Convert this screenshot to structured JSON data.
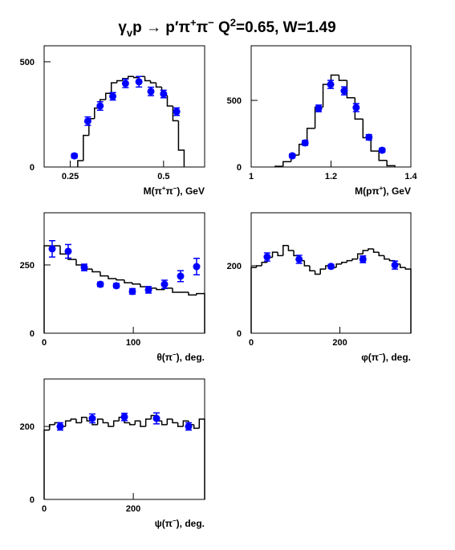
{
  "title": [
    "γ",
    {
      "sub": "v"
    },
    "p → p′π",
    {
      "sup": "+"
    },
    "π",
    {
      "sup": "−"
    },
    "   Q",
    {
      "sup": "2"
    },
    "=0.65, W=1.49"
  ],
  "chart_data": [
    {
      "type": "histogram",
      "xlabel": [
        "M(π",
        {
          "sup": "+"
        },
        "π",
        {
          "sup": "−"
        },
        "), GeV"
      ],
      "xlim": [
        0.18,
        0.61
      ],
      "xticks": [
        0.25,
        0.5
      ],
      "ylim": [
        0,
        576
      ],
      "yticks": [
        0,
        500
      ],
      "bins": [
        0.27,
        0.285,
        0.3,
        0.315,
        0.33,
        0.345,
        0.36,
        0.375,
        0.39,
        0.405,
        0.42,
        0.435,
        0.45,
        0.465,
        0.48,
        0.495,
        0.51,
        0.525,
        0.54,
        0.555
      ],
      "counts": [
        30,
        150,
        230,
        280,
        320,
        350,
        400,
        410,
        420,
        430,
        425,
        430,
        410,
        400,
        380,
        340,
        290,
        220,
        80
      ],
      "points": {
        "color": "#0000ff",
        "x": [
          0.261,
          0.297,
          0.33,
          0.364,
          0.398,
          0.434,
          0.466,
          0.5,
          0.535
        ],
        "values": [
          53,
          218,
          290,
          336,
          397,
          405,
          359,
          347,
          263
        ],
        "errors": [
          10,
          20,
          20,
          18,
          20,
          25,
          20,
          18,
          18
        ]
      }
    },
    {
      "type": "histogram",
      "xlabel": [
        "M(pπ",
        {
          "sup": "+"
        },
        "), GeV"
      ],
      "xlim": [
        1,
        1.4
      ],
      "xticks": [
        1,
        1.2,
        1.4
      ],
      "ylim": [
        0,
        910
      ],
      "yticks": [
        0,
        500
      ],
      "bins": [
        1.06,
        1.08,
        1.1,
        1.12,
        1.14,
        1.16,
        1.18,
        1.2,
        1.22,
        1.24,
        1.26,
        1.28,
        1.3,
        1.32,
        1.34,
        1.36
      ],
      "counts": [
        5,
        40,
        90,
        170,
        290,
        450,
        620,
        690,
        650,
        520,
        360,
        220,
        120,
        50,
        10
      ],
      "points": {
        "color": "#0000ff",
        "x": [
          1.103,
          1.135,
          1.169,
          1.199,
          1.233,
          1.263,
          1.295,
          1.328
        ],
        "values": [
          84,
          181,
          440,
          620,
          572,
          446,
          223,
          126
        ],
        "errors": [
          15,
          18,
          25,
          30,
          30,
          30,
          20,
          15
        ]
      }
    },
    {
      "type": "histogram",
      "xlabel": [
        "θ(π",
        {
          "sup": "−"
        },
        "), deg."
      ],
      "xlim": [
        0,
        180
      ],
      "xticks": [
        0,
        100
      ],
      "ylim": [
        0,
        441
      ],
      "yticks": [
        0,
        250
      ],
      "bins": [
        0,
        9,
        18,
        27,
        36,
        45,
        54,
        63,
        72,
        81,
        90,
        99,
        108,
        117,
        126,
        135,
        144,
        153,
        162,
        171,
        180
      ],
      "counts": [
        320,
        320,
        290,
        270,
        250,
        235,
        225,
        210,
        200,
        195,
        185,
        180,
        170,
        165,
        160,
        165,
        150,
        150,
        140,
        145
      ],
      "points": {
        "color": "#0000ff",
        "x": [
          9,
          27,
          45,
          63,
          81,
          99,
          117,
          135,
          153,
          171
        ],
        "values": [
          309,
          300,
          241,
          179,
          174,
          153,
          159,
          179,
          209,
          244
        ],
        "errors": [
          30,
          25,
          12,
          8,
          8,
          10,
          12,
          15,
          20,
          30
        ]
      }
    },
    {
      "type": "histogram",
      "xlabel": [
        "φ(π",
        {
          "sup": "−"
        },
        "), deg."
      ],
      "xlim": [
        0,
        360
      ],
      "xticks": [
        0,
        200
      ],
      "ylim": [
        0,
        357
      ],
      "yticks": [
        0,
        200
      ],
      "bins": [
        0,
        12,
        24,
        36,
        48,
        60,
        72,
        84,
        96,
        108,
        120,
        132,
        144,
        156,
        168,
        180,
        192,
        204,
        216,
        228,
        240,
        252,
        264,
        276,
        288,
        300,
        312,
        324,
        336,
        348,
        360
      ],
      "counts": [
        195,
        200,
        210,
        225,
        240,
        230,
        260,
        245,
        230,
        215,
        200,
        185,
        175,
        190,
        200,
        195,
        205,
        210,
        215,
        220,
        235,
        245,
        250,
        240,
        230,
        220,
        215,
        205,
        195,
        190
      ],
      "points": {
        "color": "#0000ff",
        "x": [
          36,
          108,
          180,
          252,
          324
        ],
        "values": [
          226,
          219,
          198,
          219,
          202
        ],
        "errors": [
          12,
          12,
          6,
          10,
          12
        ]
      }
    },
    {
      "type": "histogram",
      "xlabel": [
        "ψ(π",
        {
          "sup": "−"
        },
        "), deg."
      ],
      "xlim": [
        0,
        360
      ],
      "xticks": [
        0,
        200
      ],
      "ylim": [
        0,
        330
      ],
      "yticks": [
        0,
        200
      ],
      "bins": [
        0,
        12,
        24,
        36,
        48,
        60,
        72,
        84,
        96,
        108,
        120,
        132,
        144,
        156,
        168,
        180,
        192,
        204,
        216,
        228,
        240,
        252,
        264,
        276,
        288,
        300,
        312,
        324,
        336,
        348,
        360
      ],
      "counts": [
        190,
        205,
        210,
        200,
        215,
        220,
        210,
        225,
        215,
        205,
        220,
        210,
        200,
        215,
        225,
        210,
        205,
        215,
        200,
        220,
        230,
        215,
        205,
        220,
        210,
        200,
        215,
        205,
        195,
        220
      ],
      "points": {
        "color": "#0000ff",
        "x": [
          36,
          108,
          180,
          252,
          324
        ],
        "values": [
          200,
          222,
          226,
          222,
          200
        ],
        "errors": [
          10,
          12,
          10,
          15,
          10
        ]
      }
    }
  ]
}
